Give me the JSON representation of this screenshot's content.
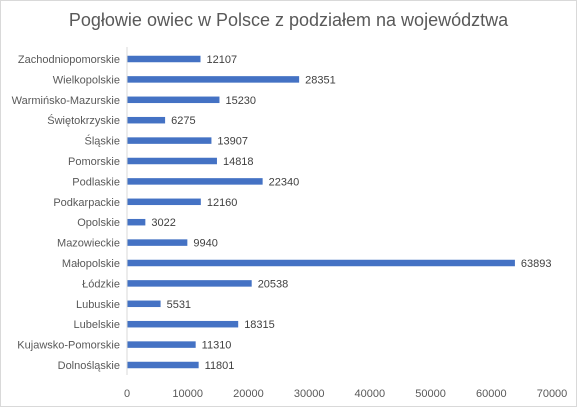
{
  "chart_data": {
    "type": "bar",
    "orientation": "horizontal",
    "title": "Pogłowie owiec w Polsce z podziałem na województwa",
    "xlabel": "",
    "ylabel": "",
    "categories": [
      "Dolnośląskie",
      "Kujawsko-Pomorskie",
      "Lubelskie",
      "Lubuskie",
      "Łódzkie",
      "Małopolskie",
      "Mazowieckie",
      "Opolskie",
      "Podkarpackie",
      "Podlaskie",
      "Pomorskie",
      "Śląskie",
      "Świętokrzyskie",
      "Warmińsko-Mazurskie",
      "Wielkopolskie",
      "Zachodniopomorskie"
    ],
    "values": [
      11801,
      11310,
      18315,
      5531,
      20538,
      63893,
      9940,
      3022,
      12160,
      22340,
      14818,
      13907,
      6275,
      15230,
      28351,
      12107
    ],
    "value_labels": [
      "11801",
      "11310",
      "18315",
      "5531",
      "20538",
      "63893",
      "9940",
      "3022",
      "12160",
      "22340",
      "14818",
      "13907",
      "6275",
      "15230",
      "28351",
      "12107"
    ],
    "xlim": [
      0,
      70000
    ],
    "x_ticks": [
      "0",
      "10000",
      "20000",
      "30000",
      "40000",
      "50000",
      "60000",
      "70000"
    ],
    "grid": false,
    "legend": "none",
    "bar_color": "#4472c4",
    "text_color": "#595959",
    "axis_color": "#d9d9d9"
  }
}
